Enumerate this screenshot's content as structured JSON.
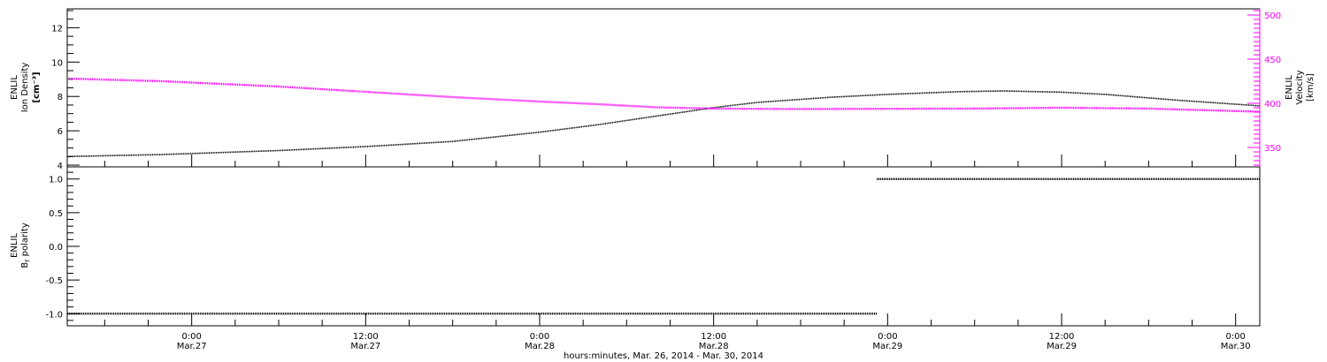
{
  "chart_data": [
    {
      "type": "line",
      "panel": "top",
      "xlabel": "hours:minutes, Mar. 26, 2014 - Mar. 30, 2014",
      "x_range": [
        "2014-03-26T15:25",
        "2014-03-30T01:40"
      ],
      "x_ticks": [
        {
          "time": "2014-03-27T00:00",
          "line1": "0:00",
          "line2": "Mar.27"
        },
        {
          "time": "2014-03-27T12:00",
          "line1": "12:00",
          "line2": "Mar.27"
        },
        {
          "time": "2014-03-28T00:00",
          "line1": "0:00",
          "line2": "Mar.28"
        },
        {
          "time": "2014-03-28T12:00",
          "line1": "12:00",
          "line2": "Mar.28"
        },
        {
          "time": "2014-03-29T00:00",
          "line1": "0:00",
          "line2": "Mar.29"
        },
        {
          "time": "2014-03-29T12:00",
          "line1": "12:00",
          "line2": "Mar.29"
        },
        {
          "time": "2014-03-30T00:00",
          "line1": "0:00",
          "line2": "Mar.30"
        }
      ],
      "left_axis": {
        "label_lines": [
          "ENLIL",
          "Ion Density",
          "[cm⁻³]"
        ],
        "ylim": [
          3.9,
          13.1
        ],
        "ticks": [
          "4",
          "6",
          "8",
          "10",
          "12"
        ],
        "color": "#000000"
      },
      "right_axis": {
        "label_lines": [
          "ENLIL",
          "Velocity",
          "[km/s]"
        ],
        "ylim": [
          328,
          507
        ],
        "ticks": [
          "350",
          "400",
          "450",
          "500"
        ],
        "color": "#ff00ff"
      },
      "series": [
        {
          "axis": "left",
          "color": "#000000",
          "points": [
            [
              "2014-03-26T15:25",
              4.5
            ],
            [
              "2014-03-26T22:00",
              4.62
            ],
            [
              "2014-03-27T06:00",
              4.85
            ],
            [
              "2014-03-27T12:00",
              5.08
            ],
            [
              "2014-03-27T18:00",
              5.38
            ],
            [
              "2014-03-28T00:00",
              5.92
            ],
            [
              "2014-03-28T04:00",
              6.35
            ],
            [
              "2014-03-28T08:00",
              6.85
            ],
            [
              "2014-03-28T12:00",
              7.35
            ],
            [
              "2014-03-28T15:00",
              7.65
            ],
            [
              "2014-03-28T20:00",
              7.95
            ],
            [
              "2014-03-29T00:00",
              8.12
            ],
            [
              "2014-03-29T05:00",
              8.28
            ],
            [
              "2014-03-29T08:00",
              8.32
            ],
            [
              "2014-03-29T12:00",
              8.25
            ],
            [
              "2014-03-29T15:00",
              8.12
            ],
            [
              "2014-03-29T20:00",
              7.78
            ],
            [
              "2014-03-30T01:40",
              7.45
            ]
          ]
        },
        {
          "axis": "right",
          "color": "#ff00ff",
          "points": [
            [
              "2014-03-26T15:25",
              428
            ],
            [
              "2014-03-26T22:00",
              425
            ],
            [
              "2014-03-27T06:00",
              419
            ],
            [
              "2014-03-27T12:00",
              413
            ],
            [
              "2014-03-27T18:00",
              407
            ],
            [
              "2014-03-28T00:00",
              402
            ],
            [
              "2014-03-28T04:00",
              399
            ],
            [
              "2014-03-28T08:00",
              395.5
            ],
            [
              "2014-03-28T12:00",
              394
            ],
            [
              "2014-03-28T18:00",
              393.5
            ],
            [
              "2014-03-29T00:00",
              393.8
            ],
            [
              "2014-03-29T06:00",
              394
            ],
            [
              "2014-03-29T12:00",
              395
            ],
            [
              "2014-03-29T18:00",
              394
            ],
            [
              "2014-03-30T01:40",
              390.5
            ]
          ]
        }
      ]
    },
    {
      "type": "scatter",
      "panel": "bottom",
      "left_axis": {
        "label_lines": [
          "ENLIL",
          "Br polarity"
        ],
        "ylim": [
          -1.18,
          1.18
        ],
        "ticks": [
          "-1.0",
          "-0.5",
          "0.0",
          "0.5",
          "1.0"
        ]
      },
      "series": [
        {
          "color": "#000000",
          "segments": [
            {
              "x_start": "2014-03-26T15:25",
              "x_end": "2014-03-28T23:15",
              "y": -1.0
            },
            {
              "x_start": "2014-03-28T23:15",
              "x_end": "2014-03-30T01:40",
              "y": 1.0
            }
          ]
        }
      ]
    }
  ]
}
